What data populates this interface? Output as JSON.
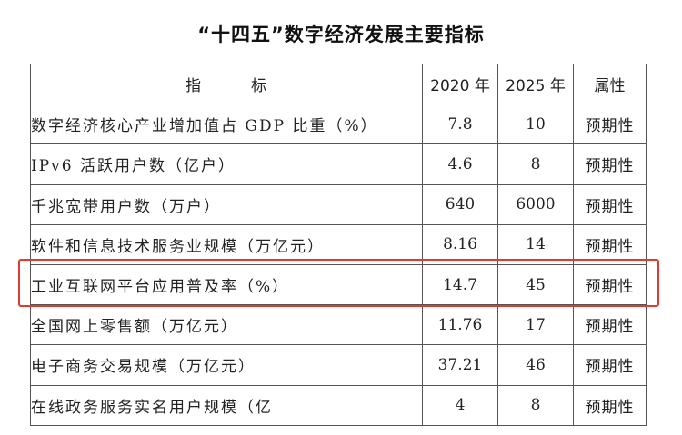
{
  "title": "“十四五”数字经济发展主要指标",
  "headers": {
    "indicator_part1": "指",
    "indicator_part2": "标",
    "y2020": "2020 年",
    "y2025": "2025 年",
    "attribute": "属性"
  },
  "rows": [
    {
      "name": "数字经济核心产业增加值占 GDP 比重（%）",
      "v2020": "7.8",
      "v2025": "10",
      "attr": "预期性"
    },
    {
      "name": "IPv6 活跃用户数（亿户）",
      "v2020": "4.6",
      "v2025": "8",
      "attr": "预期性"
    },
    {
      "name": "千兆宽带用户数（万户）",
      "v2020": "640",
      "v2025": "6000",
      "attr": "预期性"
    },
    {
      "name": "软件和信息技术服务业规模（万亿元）",
      "v2020": "8.16",
      "v2025": "14",
      "attr": "预期性"
    },
    {
      "name": "工业互联网平台应用普及率（%）",
      "v2020": "14.7",
      "v2025": "45",
      "attr": "预期性"
    },
    {
      "name": "全国网上零售额（万亿元）",
      "v2020": "11.76",
      "v2025": "17",
      "attr": "预期性"
    },
    {
      "name": "电子商务交易规模（万亿元）",
      "v2020": "37.21",
      "v2025": "46",
      "attr": "预期性"
    },
    {
      "name": "在线政务服务实名用户规模（亿",
      "v2020": "4",
      "v2025": "8",
      "attr": "预期性"
    }
  ],
  "highlight_color": "#e23a2f"
}
